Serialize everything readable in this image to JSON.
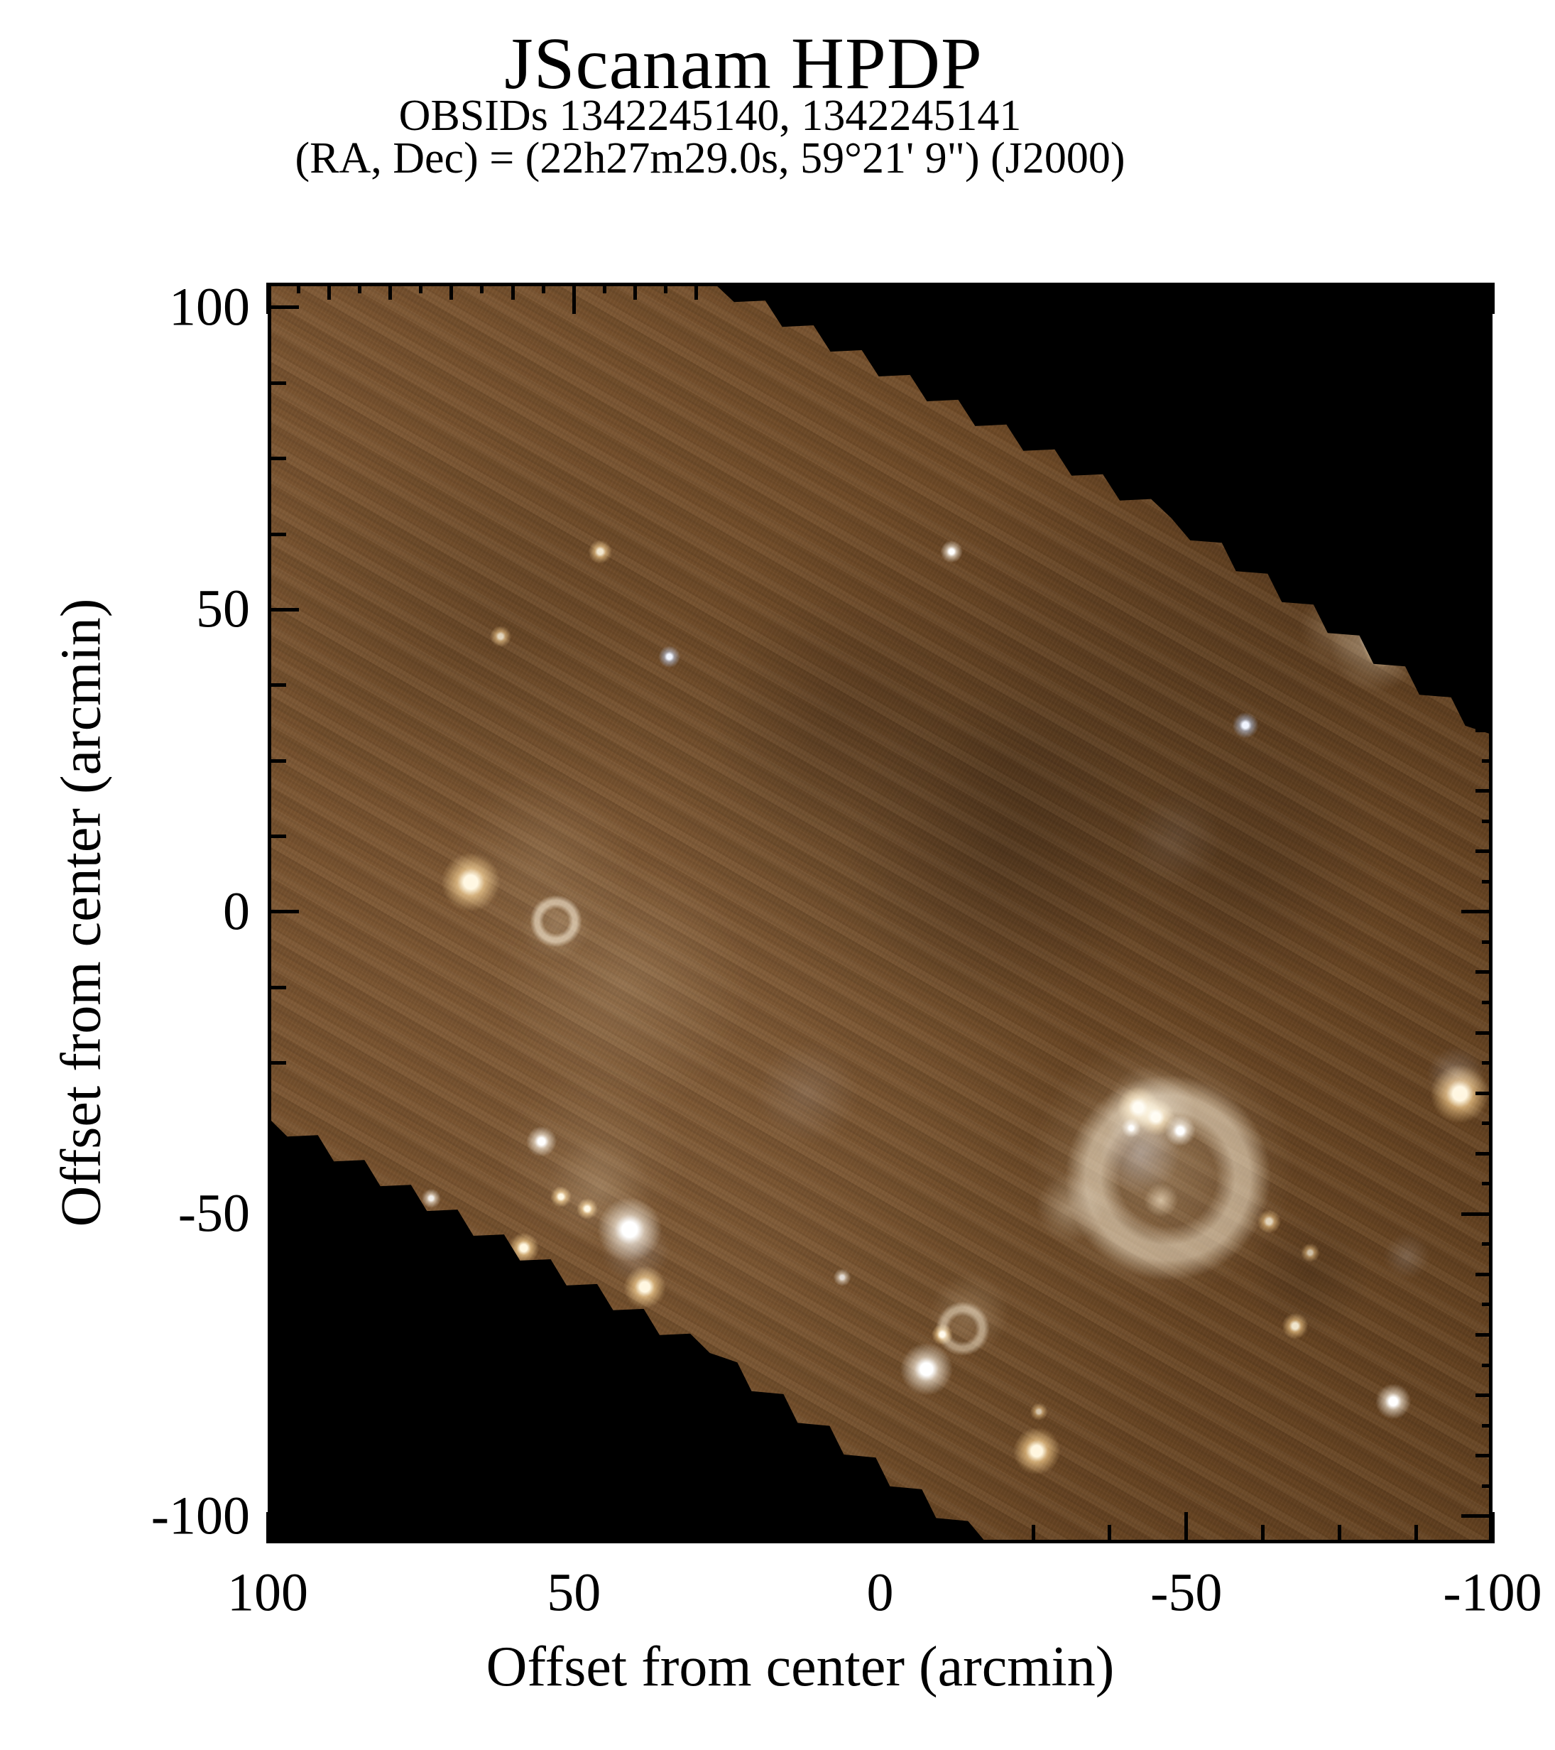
{
  "header": {
    "title": "JScanam HPDP",
    "obsids_line": "OBSIDs 1342245140, 1342245141",
    "coords_line": "(RA, Dec) = (22h27m29.0s, 59°21' 9\") (J2000)"
  },
  "axes": {
    "x_label": "Offset from center (arcmin)",
    "y_label": "Offset from center (arcmin)",
    "x_tick_values": [
      100,
      50,
      0,
      -50,
      -100
    ],
    "x_tick_labels": [
      "100",
      "50",
      "0",
      "-50",
      "-100"
    ],
    "y_tick_values": [
      100,
      50,
      0,
      -50,
      -100
    ],
    "y_tick_labels": [
      "100",
      "50",
      "0",
      "-50",
      "-100"
    ],
    "x_range": [
      100,
      -100
    ],
    "y_range": [
      104.1,
      -104.5
    ],
    "minor_step_top_right": 5,
    "minor_step_bottom_left": 12.5
  },
  "palette": {
    "page_bg": "#ffffff",
    "plot_bg": "#000000",
    "axis_color": "#000000",
    "nebula_base": "#6f4a27",
    "warm_core": "#fff3da",
    "warm_glow": "rgba(255,199,130,0.65)",
    "white_core": "#ffffff",
    "white_glow": "rgba(255,243,228,0.6)",
    "blue_core": "#e7f1ff",
    "blue_glow": "rgba(148,188,234,0.55)",
    "haze": "rgba(226,201,170,1)",
    "bright_haze": "rgba(243,226,201,1)",
    "blue_haze": "rgba(158,178,205,1)",
    "shell": "rgba(233,215,190,1)",
    "dark": "rgba(20,11,4,1)"
  },
  "chart_data": {
    "type": "heatmap",
    "subtype": "astronomical-scan-map-rgb-image",
    "title": "JScanam HPDP",
    "subtitle_lines": [
      "OBSIDs 1342245140, 1342245141",
      "(RA, Dec) = (22h27m29.0s, 59°21' 9\") (J2000)"
    ],
    "xlabel": "Offset from center (arcmin)",
    "ylabel": "Offset from center (arcmin)",
    "x_ticks": [
      100,
      50,
      0,
      -50,
      -100
    ],
    "y_ticks": [
      100,
      50,
      0,
      -50,
      -100
    ],
    "grid": false,
    "legend": false,
    "coverage_polygon_arcmin": [
      {
        "x": 100,
        "y": 104.1,
        "jag": false
      },
      {
        "x": 27.2,
        "y": 104.1,
        "jag": true
      },
      {
        "x": -47.6,
        "y": 65.1,
        "jag": true
      },
      {
        "x": -100,
        "y": 29.3,
        "jag": false
      },
      {
        "x": -100,
        "y": -104.5,
        "jag": false
      },
      {
        "x": -17.4,
        "y": -104.5,
        "jag": true
      },
      {
        "x": 27.8,
        "y": -73,
        "jag": true
      },
      {
        "x": 100,
        "y": -34,
        "jag": false
      }
    ],
    "features": [
      {
        "n": "dark-cloud-center",
        "k": "dark",
        "x": -20,
        "y": 10,
        "r": 28,
        "t": "dark",
        "a": 0.16
      },
      {
        "n": "dark-cloud-right",
        "k": "dark",
        "x": -60,
        "y": 6,
        "r": 24,
        "t": "dark",
        "a": 0.13
      },
      {
        "n": "dark-cloud-top",
        "k": "dark",
        "x": 8,
        "y": 32,
        "r": 22,
        "t": "dark",
        "a": 0.11
      },
      {
        "n": "dark-cloud-se",
        "k": "dark",
        "x": -70,
        "y": -60,
        "r": 11,
        "t": "dark",
        "a": 0.14
      },
      {
        "n": "bright-cirrus-left",
        "k": "glow",
        "x": 42,
        "y": -12,
        "r": 22,
        "t": "haze",
        "a": 0.14
      },
      {
        "n": "bright-cirrus-left-mid",
        "k": "glow",
        "x": 55,
        "y": 8,
        "r": 16,
        "t": "haze",
        "a": 0.12
      },
      {
        "n": "bright-cirrus-sw",
        "k": "glow",
        "x": 47,
        "y": -41,
        "r": 16,
        "t": "haze",
        "a": 0.12
      },
      {
        "n": "blue-haze-center",
        "k": "glow",
        "x": 12,
        "y": -30,
        "r": 9,
        "t": "blue_haze",
        "a": 0.15
      },
      {
        "n": "blue-haze-upper-right",
        "k": "glow",
        "x": -48,
        "y": 12,
        "r": 8,
        "t": "blue_haze",
        "a": 0.1
      },
      {
        "n": "blue-haze-br",
        "k": "glow",
        "x": -86,
        "y": -57,
        "r": 4,
        "t": "blue_haze",
        "a": 0.2
      },
      {
        "n": "hii-bubble-outer-glow",
        "k": "glow",
        "x": -46,
        "y": -42,
        "r": 23,
        "t": "haze",
        "a": 0.3
      },
      {
        "n": "hii-bubble-shell",
        "k": "ring",
        "x": -47,
        "y": -44,
        "r": 17,
        "t": "shell",
        "a": 0.55
      },
      {
        "n": "hii-bubble-blue-cavity",
        "k": "glow",
        "x": -42.5,
        "y": -40,
        "r": 7,
        "t": "blue_haze",
        "a": 0.45
      },
      {
        "n": "hii-bubble-west-rim",
        "k": "glow",
        "x": -31,
        "y": -49,
        "r": 6,
        "t": "bright_haze",
        "a": 0.35
      },
      {
        "n": "hii-ridge-glow",
        "k": "glow",
        "x": -44,
        "y": -33,
        "r": 8,
        "t": "bright_haze",
        "a": 0.5
      },
      {
        "n": "hii-knot-a",
        "k": "star",
        "x": -42.1,
        "y": -32.4,
        "r": 3.6,
        "t": "warm",
        "a": 1
      },
      {
        "n": "hii-knot-b",
        "k": "star",
        "x": -45,
        "y": -34,
        "r": 3.2,
        "t": "warm",
        "a": 1
      },
      {
        "n": "hii-knot-c",
        "k": "star",
        "x": -49,
        "y": -36.2,
        "r": 2.6,
        "t": "white",
        "a": 1
      },
      {
        "n": "hii-knot-dot",
        "k": "star",
        "x": -41,
        "y": -35.8,
        "r": 1.6,
        "t": "white",
        "a": 1
      },
      {
        "n": "hii-south-knot",
        "k": "glow",
        "x": -45.9,
        "y": -47.7,
        "r": 3,
        "t": "warm",
        "a": 0.7
      },
      {
        "n": "ne-edge-cluster-glow",
        "k": "glow",
        "x": -81,
        "y": 44,
        "r": 8,
        "t": "bright_haze",
        "a": 0.4
      },
      {
        "n": "ne-edge-wisp",
        "k": "glow",
        "x": -75,
        "y": 47,
        "r": 7,
        "t": "haze",
        "a": 0.25
      },
      {
        "n": "ne-edge-star-a",
        "k": "star",
        "x": -80.9,
        "y": 45.4,
        "r": 2.8,
        "t": "white",
        "a": 1
      },
      {
        "n": "ne-edge-star-b",
        "k": "star",
        "x": -82,
        "y": 43.6,
        "r": 3.2,
        "t": "warm",
        "a": 1
      },
      {
        "n": "ne-edge-blue-dot",
        "k": "star",
        "x": -83,
        "y": 42.7,
        "r": 1.6,
        "t": "blue",
        "a": 1
      },
      {
        "n": "sw-cluster-filament",
        "k": "glow",
        "x": 46,
        "y": -46,
        "r": 9,
        "t": "haze",
        "a": 0.2
      },
      {
        "n": "sw-cluster-main-star",
        "k": "star",
        "x": 40.9,
        "y": -52.6,
        "r": 5.5,
        "t": "white",
        "a": 1
      },
      {
        "n": "sw-cluster-blue-jet",
        "k": "glow",
        "x": 40,
        "y": -56,
        "r": 6,
        "t": "blue_haze",
        "a": 0.25
      },
      {
        "n": "sw-cluster-star-b",
        "k": "star",
        "x": 38.4,
        "y": -62.1,
        "r": 3.6,
        "t": "warm",
        "a": 1
      },
      {
        "n": "sw-cluster-star-c",
        "k": "star",
        "x": 55.3,
        "y": -38,
        "r": 2.6,
        "t": "white",
        "a": 1
      },
      {
        "n": "sw-cluster-dot-d",
        "k": "star",
        "x": 52.1,
        "y": -47.1,
        "r": 1.8,
        "t": "warm",
        "a": 1
      },
      {
        "n": "sw-cluster-dot-e",
        "k": "star",
        "x": 47.8,
        "y": -49.1,
        "r": 1.8,
        "t": "warm",
        "a": 1
      },
      {
        "n": "sw-edge-star",
        "k": "star",
        "x": 58.2,
        "y": -55.6,
        "r": 2.6,
        "t": "warm",
        "a": 1
      },
      {
        "n": "sw-dot-f",
        "k": "star",
        "x": 73.3,
        "y": -47.4,
        "r": 1.6,
        "t": "white",
        "a": 0.9
      },
      {
        "n": "west-bright-star",
        "k": "star",
        "x": 66.9,
        "y": 4.9,
        "r": 5,
        "t": "warm",
        "a": 1
      },
      {
        "n": "ring-nebula",
        "k": "ring",
        "x": 52.9,
        "y": -1.5,
        "r": 4.3,
        "t": "shell",
        "a": 0.6
      },
      {
        "n": "ring-nebula-halo",
        "k": "glow",
        "x": 52.9,
        "y": -2.5,
        "r": 6,
        "t": "haze",
        "a": 0.2
      },
      {
        "n": "nw-faint-dot",
        "k": "star",
        "x": 62,
        "y": 45.6,
        "r": 1.8,
        "t": "warm",
        "a": 0.8
      },
      {
        "n": "n-warm-double",
        "k": "star",
        "x": 45.7,
        "y": 59.6,
        "r": 2,
        "t": "warm",
        "a": 0.9
      },
      {
        "n": "n-blue-dot",
        "k": "star",
        "x": 34.4,
        "y": 42.2,
        "r": 1.9,
        "t": "blue",
        "a": 1
      },
      {
        "n": "s-bright-star",
        "k": "star",
        "x": -7.6,
        "y": -75.7,
        "r": 4.5,
        "t": "white",
        "a": 1
      },
      {
        "n": "s-warm-star",
        "k": "star",
        "x": -25.6,
        "y": -89.2,
        "r": 4,
        "t": "warm",
        "a": 1
      },
      {
        "n": "s-wisp-ring",
        "k": "ring",
        "x": -13.5,
        "y": -69,
        "r": 4.5,
        "t": "shell",
        "a": 0.5
      },
      {
        "n": "s-wisp-glow",
        "k": "glow",
        "x": -14.5,
        "y": -66.5,
        "r": 7,
        "t": "haze",
        "a": 0.25
      },
      {
        "n": "s-wisp-dot",
        "k": "star",
        "x": -10.1,
        "y": -69.9,
        "r": 1.8,
        "t": "warm",
        "a": 1
      },
      {
        "n": "s-tiny-dot-a",
        "k": "star",
        "x": 6.2,
        "y": -60.5,
        "r": 1.5,
        "t": "white",
        "a": 0.8
      },
      {
        "n": "s-tiny-dot-b",
        "k": "star",
        "x": -25.9,
        "y": -82.7,
        "r": 1.5,
        "t": "warm",
        "a": 0.7
      },
      {
        "n": "east-edge-star",
        "k": "star",
        "x": -94.7,
        "y": -30.1,
        "r": 5,
        "t": "warm",
        "a": 1
      },
      {
        "n": "east-edge-blue-patch",
        "k": "glow",
        "x": -94,
        "y": -27,
        "r": 5,
        "t": "blue_haze",
        "a": 0.3
      },
      {
        "n": "e-blue-star",
        "k": "star",
        "x": -59.7,
        "y": 30.9,
        "r": 2.2,
        "t": "blue",
        "a": 1
      },
      {
        "n": "n-white-dot",
        "k": "star",
        "x": -11.7,
        "y": 59.6,
        "r": 1.9,
        "t": "white",
        "a": 1
      },
      {
        "n": "se-faint-warm-dot",
        "k": "star",
        "x": -63.5,
        "y": -51.2,
        "r": 2,
        "t": "warm",
        "a": 0.8
      },
      {
        "n": "se-white-star",
        "k": "star",
        "x": -83.8,
        "y": -81,
        "r": 3,
        "t": "white",
        "a": 1
      },
      {
        "n": "se-warm-dot-a",
        "k": "star",
        "x": -67.8,
        "y": -68.5,
        "r": 2.2,
        "t": "warm",
        "a": 0.9
      },
      {
        "n": "se-warm-dot-b",
        "k": "star",
        "x": -70.2,
        "y": -56.4,
        "r": 1.6,
        "t": "warm",
        "a": 0.7
      }
    ]
  }
}
